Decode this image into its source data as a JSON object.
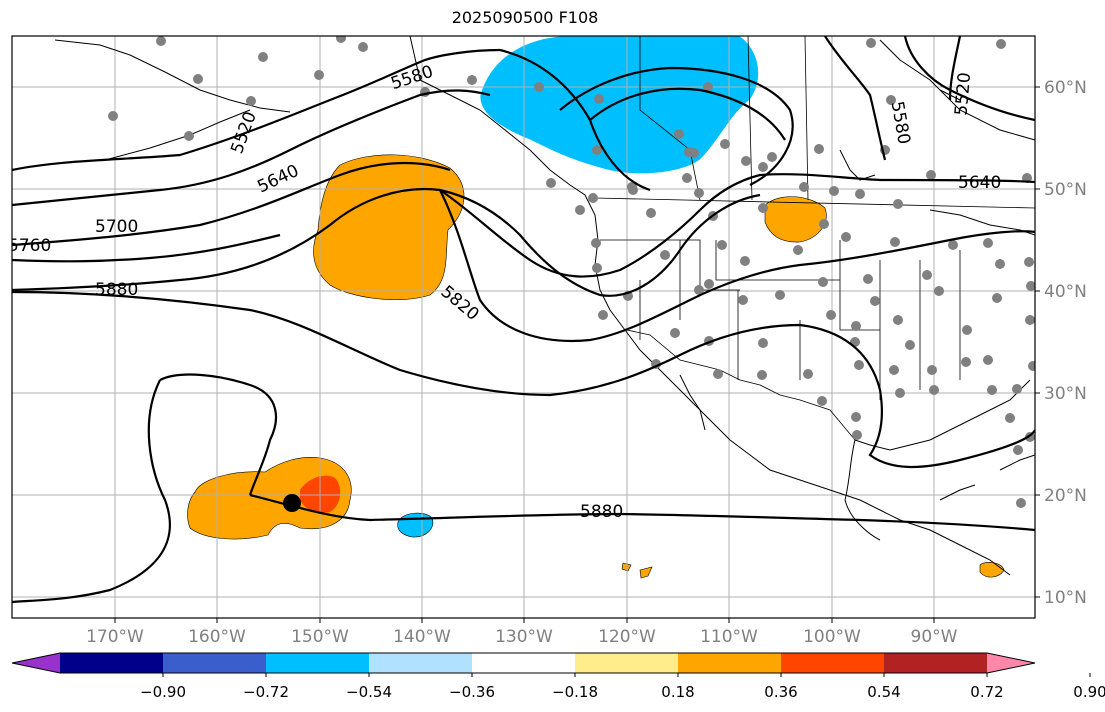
{
  "title": "2025090500 F108",
  "colors": {
    "neg_blue": "#00bfff",
    "pos_orange": "#ffa500",
    "pos_red": "#ff4500",
    "station_gray": "#808080",
    "grid_gray": "#b0b0b0",
    "tick_label_gray": "#808080"
  },
  "lat_labels": [
    "60°N",
    "50°N",
    "40°N",
    "30°N",
    "20°N",
    "10°N"
  ],
  "lon_labels": [
    "170°W",
    "160°W",
    "150°W",
    "140°W",
    "130°W",
    "120°W",
    "110°W",
    "100°W",
    "90°W"
  ],
  "contour_labels": [
    "5580",
    "5520",
    "5640",
    "5700",
    "5760",
    "5880",
    "5820",
    "5580",
    "5520",
    "5640",
    "5880"
  ],
  "colorbar": {
    "ticks": [
      "−0.90",
      "−0.72",
      "−0.54",
      "−0.36",
      "−0.18",
      "0.18",
      "0.36",
      "0.54",
      "0.72",
      "0.90"
    ],
    "colors": [
      "#9932cc",
      "#00008b",
      "#3a5fcd",
      "#00bfff",
      "#b0e2ff",
      "#ffffff",
      "#ffec8b",
      "#ffa500",
      "#ff4500",
      "#b22222",
      "#ff88aa"
    ]
  }
}
